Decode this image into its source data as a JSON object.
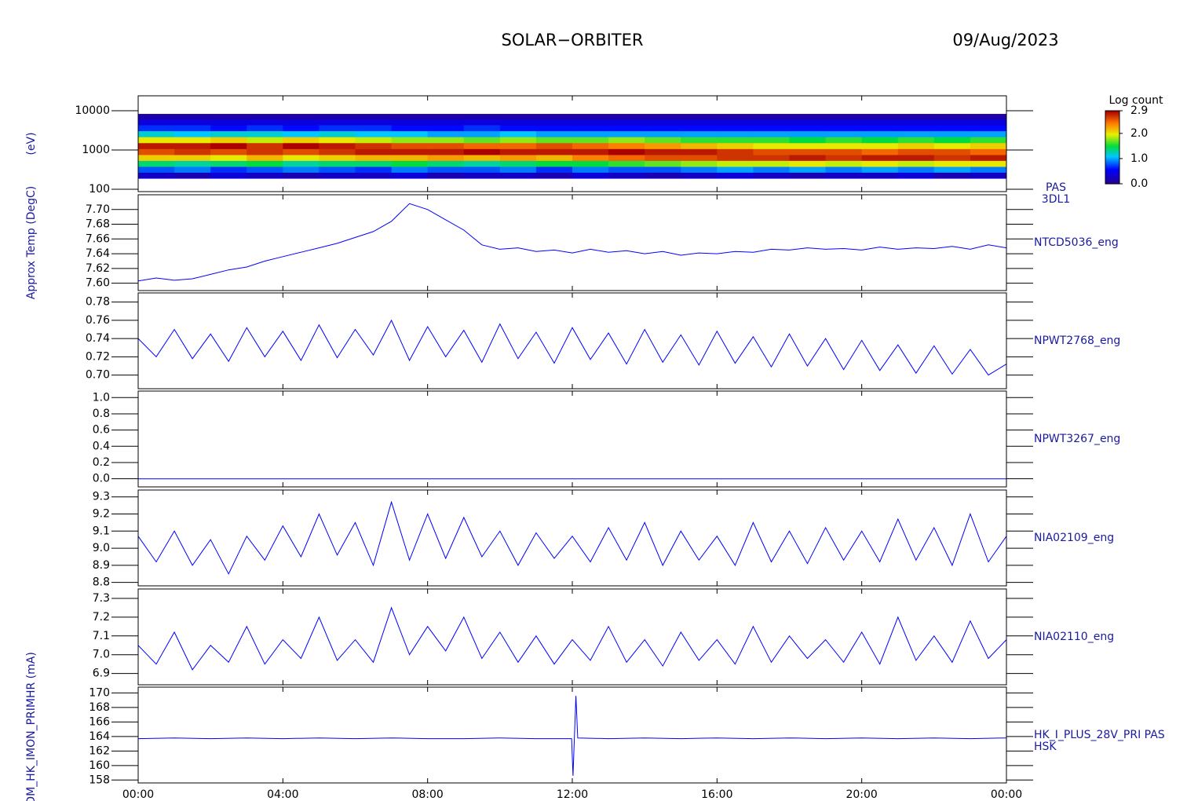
{
  "header": {
    "title": "SOLAR−ORBITER",
    "date": "09/Aug/2023"
  },
  "chart_data": [
    {
      "type": "heatmap",
      "ylabel": "(eV)",
      "side_label": [
        "PAS",
        "3DL1"
      ],
      "log": true,
      "xlim": [
        0,
        24
      ],
      "ylim": [
        87,
        24000
      ],
      "yticks": [
        100,
        1000,
        10000
      ],
      "xbins": [
        0,
        1,
        2,
        3,
        4,
        5,
        6,
        7,
        8,
        9,
        10,
        11,
        12,
        13,
        14,
        15,
        16,
        17,
        18,
        19,
        20,
        21,
        22,
        23,
        24
      ],
      "ybins": [
        190,
        270,
        380,
        540,
        760,
        1080,
        1530,
        2170,
        3080,
        4370,
        6200,
        8300
      ],
      "values": [
        [
          0.3,
          0.2,
          0.4,
          0.3,
          0.2,
          0.3,
          0.3,
          0.4,
          0.2,
          0.3,
          0.3,
          0.2,
          0.4,
          0.3,
          0.2,
          0.3,
          0.4,
          0.3,
          0.2,
          0.3,
          0.3,
          0.4,
          0.2,
          0.3
        ],
        [
          0.8,
          0.9,
          0.7,
          0.8,
          0.9,
          0.8,
          0.7,
          0.9,
          0.8,
          0.8,
          0.9,
          0.7,
          0.9,
          0.8,
          0.8,
          0.9,
          1.0,
          0.9,
          1.0,
          0.9,
          1.0,
          0.9,
          1.0,
          0.9
        ],
        [
          1.4,
          1.3,
          1.4,
          1.5,
          1.3,
          1.4,
          1.4,
          1.5,
          1.4,
          1.3,
          1.4,
          1.5,
          1.5,
          1.6,
          1.7,
          1.8,
          1.9,
          1.9,
          2.0,
          1.9,
          2.0,
          1.9,
          2.0,
          2.0
        ],
        [
          2.1,
          2.1,
          2.0,
          2.2,
          2.0,
          2.1,
          2.2,
          2.2,
          2.3,
          2.2,
          2.3,
          2.2,
          2.4,
          2.5,
          2.6,
          2.6,
          2.7,
          2.7,
          2.8,
          2.7,
          2.8,
          2.8,
          2.7,
          2.8
        ],
        [
          2.6,
          2.7,
          2.6,
          2.7,
          2.6,
          2.7,
          2.8,
          2.8,
          2.8,
          2.9,
          2.8,
          2.8,
          2.8,
          2.9,
          2.8,
          2.8,
          2.7,
          2.6,
          2.6,
          2.6,
          2.5,
          2.6,
          2.6,
          2.5
        ],
        [
          2.8,
          2.8,
          2.9,
          2.7,
          2.9,
          2.8,
          2.7,
          2.6,
          2.6,
          2.5,
          2.5,
          2.6,
          2.5,
          2.4,
          2.3,
          2.2,
          2.1,
          2.0,
          2.0,
          2.0,
          2.0,
          2.1,
          2.0,
          2.1
        ],
        [
          2.0,
          2.0,
          2.1,
          1.9,
          2.1,
          2.0,
          1.9,
          1.8,
          1.8,
          1.7,
          1.8,
          1.7,
          1.7,
          1.8,
          1.7,
          1.6,
          1.6,
          1.6,
          1.5,
          1.6,
          1.5,
          1.6,
          1.5,
          1.6
        ],
        [
          1.2,
          1.1,
          1.2,
          1.2,
          1.1,
          1.2,
          1.1,
          1.1,
          1.0,
          1.0,
          1.1,
          1.0,
          1.0,
          1.0,
          1.0,
          1.0,
          1.0,
          1.0,
          1.0,
          1.0,
          1.0,
          1.0,
          1.0,
          1.0
        ],
        [
          0.7,
          0.7,
          0.6,
          0.7,
          0.6,
          0.7,
          0.7,
          0.6,
          0.6,
          0.7,
          0.6,
          0.6,
          0.6,
          0.6,
          0.6,
          0.6,
          0.6,
          0.6,
          0.6,
          0.6,
          0.6,
          0.6,
          0.6,
          0.6
        ],
        [
          0.4,
          0.4,
          0.4,
          0.4,
          0.4,
          0.4,
          0.4,
          0.4,
          0.4,
          0.4,
          0.4,
          0.4,
          0.4,
          0.4,
          0.4,
          0.4,
          0.4,
          0.4,
          0.4,
          0.4,
          0.4,
          0.4,
          0.4,
          0.4
        ],
        [
          0.15,
          0.15,
          0.15,
          0.15,
          0.15,
          0.15,
          0.15,
          0.15,
          0.15,
          0.15,
          0.15,
          0.15,
          0.15,
          0.15,
          0.15,
          0.15,
          0.15,
          0.15,
          0.15,
          0.15,
          0.15,
          0.15,
          0.15,
          0.15
        ]
      ],
      "colorbar": {
        "title": "Log count",
        "clim": [
          0,
          2.9
        ],
        "ticks": [
          {
            "value": 0,
            "label": "0.0"
          },
          {
            "value": 1,
            "label": "1.0"
          },
          {
            "value": 2,
            "label": "2.0"
          },
          2.9
        ]
      }
    },
    {
      "type": "line",
      "ylabel": "Approx Temp (DegC)",
      "side_label": [
        "NTCD5036_eng"
      ],
      "color": "#0000ff",
      "xlim": [
        0,
        24
      ],
      "ylim": [
        7.59,
        7.72
      ],
      "yticks": [
        {
          "value": 7.6,
          "label": "7.60"
        },
        {
          "value": 7.62,
          "label": "7.62"
        },
        {
          "value": 7.64,
          "label": "7.64"
        },
        {
          "value": 7.66,
          "label": "7.66"
        },
        {
          "value": 7.68,
          "label": "7.68"
        },
        {
          "value": 7.7,
          "label": "7.70"
        }
      ],
      "x": [
        0,
        0.5,
        1,
        1.5,
        2,
        2.5,
        3,
        3.5,
        4,
        4.5,
        5,
        5.5,
        6,
        6.5,
        7,
        7.5,
        8,
        8.5,
        9,
        9.5,
        10,
        10.5,
        11,
        11.5,
        12,
        12.5,
        13,
        13.5,
        14,
        14.5,
        15,
        15.5,
        16,
        16.5,
        17,
        17.5,
        18,
        18.5,
        19,
        19.5,
        20,
        20.5,
        21,
        21.5,
        22,
        22.5,
        23,
        23.5,
        24
      ],
      "values": [
        7.603,
        7.607,
        7.604,
        7.606,
        7.612,
        7.618,
        7.622,
        7.63,
        7.636,
        7.642,
        7.648,
        7.654,
        7.662,
        7.67,
        7.684,
        7.708,
        7.7,
        7.686,
        7.672,
        7.652,
        7.646,
        7.648,
        7.643,
        7.645,
        7.641,
        7.646,
        7.642,
        7.644,
        7.64,
        7.643,
        7.638,
        7.641,
        7.64,
        7.643,
        7.642,
        7.646,
        7.645,
        7.648,
        7.646,
        7.647,
        7.645,
        7.649,
        7.646,
        7.648,
        7.647,
        7.65,
        7.646,
        7.652,
        7.648
      ]
    },
    {
      "type": "line",
      "side_label": [
        "NPWT2768_eng"
      ],
      "color": "#0000ff",
      "xlim": [
        0,
        24
      ],
      "ylim": [
        0.685,
        0.79
      ],
      "yticks": [
        {
          "value": 0.7,
          "label": "0.70"
        },
        {
          "value": 0.72,
          "label": "0.72"
        },
        {
          "value": 0.74,
          "label": "0.74"
        },
        {
          "value": 0.76,
          "label": "0.76"
        },
        {
          "value": 0.78,
          "label": "0.78"
        }
      ],
      "x": [
        0,
        0.5,
        1,
        1.5,
        2,
        2.5,
        3,
        3.5,
        4,
        4.5,
        5,
        5.5,
        6,
        6.5,
        7,
        7.5,
        8,
        8.5,
        9,
        9.5,
        10,
        10.5,
        11,
        11.5,
        12,
        12.5,
        13,
        13.5,
        14,
        14.5,
        15,
        15.5,
        16,
        16.5,
        17,
        17.5,
        18,
        18.5,
        19,
        19.5,
        20,
        20.5,
        21,
        21.5,
        22,
        22.5,
        23,
        23.5,
        24
      ],
      "values": [
        0.74,
        0.72,
        0.75,
        0.718,
        0.745,
        0.715,
        0.752,
        0.72,
        0.748,
        0.716,
        0.755,
        0.719,
        0.75,
        0.722,
        0.76,
        0.716,
        0.753,
        0.72,
        0.749,
        0.714,
        0.756,
        0.718,
        0.747,
        0.713,
        0.752,
        0.717,
        0.746,
        0.712,
        0.75,
        0.714,
        0.744,
        0.711,
        0.748,
        0.713,
        0.742,
        0.709,
        0.745,
        0.71,
        0.74,
        0.706,
        0.738,
        0.705,
        0.733,
        0.702,
        0.732,
        0.701,
        0.728,
        0.7,
        0.712
      ]
    },
    {
      "type": "line",
      "side_label": [
        "NPWT3267_eng"
      ],
      "color": "#0000ff",
      "xlim": [
        0,
        24
      ],
      "ylim": [
        -0.1,
        1.08
      ],
      "yticks": [
        {
          "value": 0,
          "label": "0.0"
        },
        0.2,
        0.4,
        0.6,
        0.8,
        {
          "value": 1,
          "label": "1.0"
        }
      ],
      "x": [
        0,
        0.5,
        1,
        1.5,
        2,
        2.5,
        3,
        3.5,
        4,
        4.5,
        5,
        5.5,
        6,
        6.5,
        7,
        7.5,
        8,
        8.5,
        9,
        9.5,
        10,
        10.5,
        11,
        11.5,
        12,
        12.5,
        13,
        13.5,
        14,
        14.5,
        15,
        15.5,
        16,
        16.5,
        17,
        17.5,
        18,
        18.5,
        19,
        19.5,
        20,
        20.5,
        21,
        21.5,
        22,
        22.5,
        23,
        23.5,
        24
      ],
      "values": [
        0,
        0,
        0,
        0,
        0,
        0,
        0,
        0,
        0,
        0,
        0,
        0,
        0,
        0,
        0,
        0,
        0,
        0,
        0,
        0,
        0,
        0,
        0,
        0,
        0,
        0,
        0,
        0,
        0,
        0,
        0,
        0,
        0,
        0,
        0,
        0,
        0,
        0,
        0,
        0,
        0,
        0,
        0,
        0,
        0,
        0,
        0,
        0,
        0
      ]
    },
    {
      "type": "line",
      "side_label": [
        "NIA02109_eng"
      ],
      "color": "#0000ff",
      "xlim": [
        0,
        24
      ],
      "ylim": [
        8.78,
        9.34
      ],
      "yticks": [
        8.8,
        8.9,
        {
          "value": 9,
          "label": "9.0"
        },
        9.1,
        9.2,
        9.3
      ],
      "x": [
        0,
        0.5,
        1,
        1.5,
        2,
        2.5,
        3,
        3.5,
        4,
        4.5,
        5,
        5.5,
        6,
        6.5,
        7,
        7.5,
        8,
        8.5,
        9,
        9.5,
        10,
        10.5,
        11,
        11.5,
        12,
        12.5,
        13,
        13.5,
        14,
        14.5,
        15,
        15.5,
        16,
        16.5,
        17,
        17.5,
        18,
        18.5,
        19,
        19.5,
        20,
        20.5,
        21,
        21.5,
        22,
        22.5,
        23,
        23.5,
        24
      ],
      "values": [
        9.07,
        8.92,
        9.1,
        8.9,
        9.05,
        8.85,
        9.07,
        8.93,
        9.13,
        8.95,
        9.2,
        8.96,
        9.15,
        8.9,
        9.27,
        8.93,
        9.2,
        8.94,
        9.18,
        8.95,
        9.1,
        8.9,
        9.09,
        8.94,
        9.07,
        8.92,
        9.12,
        8.93,
        9.15,
        8.9,
        9.1,
        8.93,
        9.07,
        8.9,
        9.15,
        8.92,
        9.1,
        8.91,
        9.12,
        8.93,
        9.1,
        8.92,
        9.17,
        8.93,
        9.12,
        8.9,
        9.2,
        8.92,
        9.07
      ]
    },
    {
      "type": "line",
      "side_label": [
        "NIA02110_eng"
      ],
      "color": "#0000ff",
      "xlim": [
        0,
        24
      ],
      "ylim": [
        6.84,
        7.35
      ],
      "yticks": [
        6.9,
        {
          "value": 7,
          "label": "7.0"
        },
        7.1,
        7.2,
        7.3
      ],
      "x": [
        0,
        0.5,
        1,
        1.5,
        2,
        2.5,
        3,
        3.5,
        4,
        4.5,
        5,
        5.5,
        6,
        6.5,
        7,
        7.5,
        8,
        8.5,
        9,
        9.5,
        10,
        10.5,
        11,
        11.5,
        12,
        12.5,
        13,
        13.5,
        14,
        14.5,
        15,
        15.5,
        16,
        16.5,
        17,
        17.5,
        18,
        18.5,
        19,
        19.5,
        20,
        20.5,
        21,
        21.5,
        22,
        22.5,
        23,
        23.5,
        24
      ],
      "values": [
        7.05,
        6.95,
        7.12,
        6.92,
        7.05,
        6.96,
        7.15,
        6.95,
        7.08,
        6.98,
        7.2,
        6.97,
        7.08,
        6.96,
        7.25,
        7.0,
        7.15,
        7.02,
        7.2,
        6.98,
        7.12,
        6.96,
        7.1,
        6.95,
        7.08,
        6.97,
        7.15,
        6.96,
        7.08,
        6.94,
        7.12,
        6.97,
        7.08,
        6.95,
        7.15,
        6.96,
        7.1,
        6.98,
        7.08,
        6.96,
        7.12,
        6.95,
        7.2,
        6.97,
        7.1,
        6.96,
        7.18,
        6.98,
        7.08
      ]
    },
    {
      "type": "line",
      "ylabel": "PADM_HK_IMON_PRIMHR (mA)",
      "side_label": [
        "HK_I_PLUS_28V_PRI PAS",
        "HSK"
      ],
      "color": "#0000ff",
      "xlim": [
        0,
        24
      ],
      "ylim": [
        157.6,
        170.8
      ],
      "yticks": [
        158,
        160,
        162,
        164,
        166,
        168,
        170
      ],
      "xticks": [
        {
          "value": 0,
          "label": "00:00"
        },
        {
          "value": 4,
          "label": "04:00"
        },
        {
          "value": 8,
          "label": "08:00"
        },
        {
          "value": 12,
          "label": "12:00"
        },
        {
          "value": 16,
          "label": "16:00"
        },
        {
          "value": 20,
          "label": "20:00"
        },
        {
          "value": 24,
          "label": "00:00"
        }
      ],
      "x": [
        0,
        1,
        2,
        3,
        4,
        5,
        6,
        7,
        8,
        9,
        10,
        11,
        11.98,
        12.02,
        12.1,
        12.15,
        13,
        14,
        15,
        16,
        17,
        18,
        19,
        20,
        21,
        22,
        23,
        24
      ],
      "values": [
        163.7,
        163.8,
        163.7,
        163.8,
        163.7,
        163.8,
        163.7,
        163.8,
        163.7,
        163.7,
        163.8,
        163.7,
        163.7,
        158.6,
        169.6,
        163.8,
        163.7,
        163.8,
        163.7,
        163.8,
        163.7,
        163.8,
        163.7,
        163.8,
        163.7,
        163.8,
        163.7,
        163.8
      ]
    }
  ]
}
